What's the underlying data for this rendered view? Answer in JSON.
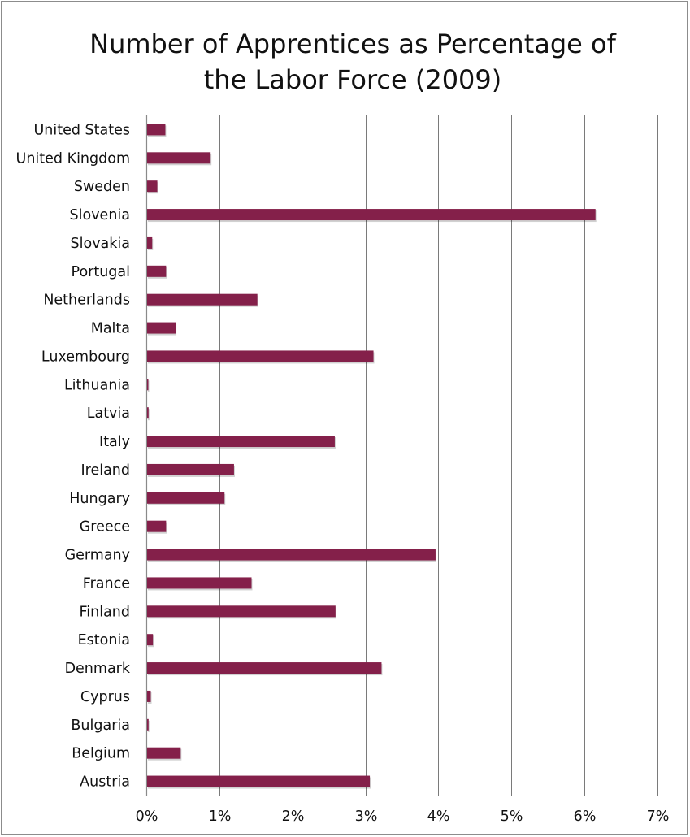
{
  "chart_data": {
    "type": "bar",
    "orientation": "horizontal",
    "title": "Number of Apprentices as Percentage of the Labor Force (2009)",
    "title_lines": [
      "Number of Apprentices as Percentage of",
      "the Labor Force (2009)"
    ],
    "categories": [
      "United States",
      "United Kingdom",
      "Sweden",
      "Slovenia",
      "Slovakia",
      "Portugal",
      "Netherlands",
      "Malta",
      "Luxembourg",
      "Lithuania",
      "Latvia",
      "Italy",
      "Ireland",
      "Hungary",
      "Greece",
      "Germany",
      "France",
      "Finland",
      "Estonia",
      "Denmark",
      "Cyprus",
      "Bulgaria",
      "Belgium",
      "Austria"
    ],
    "values": [
      0.25,
      0.87,
      0.14,
      6.14,
      0.07,
      0.26,
      1.51,
      0.39,
      3.1,
      0.01,
      0.02,
      2.57,
      1.19,
      1.06,
      0.26,
      3.95,
      1.43,
      2.58,
      0.08,
      3.21,
      0.05,
      0.02,
      0.46,
      3.05
    ],
    "xlim": [
      0,
      7
    ],
    "x_ticks": [
      0,
      1,
      2,
      3,
      4,
      5,
      6,
      7
    ],
    "x_tick_labels": [
      "0%",
      "1%",
      "2%",
      "3%",
      "4%",
      "5%",
      "6%",
      "7%"
    ],
    "xlabel": "",
    "ylabel": "",
    "grid": "vertical",
    "legend": "none",
    "bar_color": "#84204a",
    "grid_color": "#7a7a7a"
  }
}
